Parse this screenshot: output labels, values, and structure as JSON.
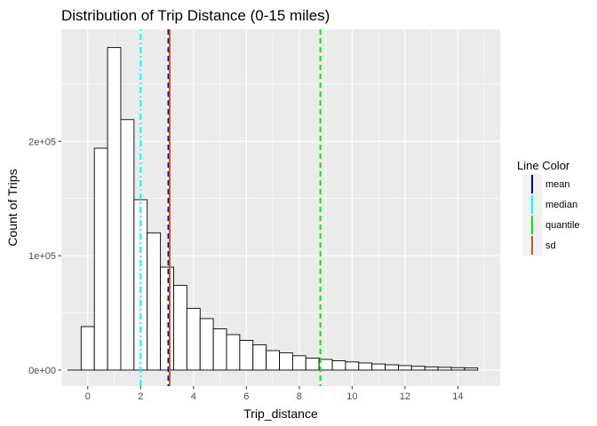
{
  "chart_data": {
    "type": "bar",
    "subtype": "histogram",
    "title": "Distribution of Trip Distance (0-15 miles)",
    "xlabel": "Trip_distance",
    "ylabel": "Count of Trips",
    "xlim": [
      -1.0,
      15.6
    ],
    "ylim": [
      -14000,
      298000
    ],
    "x_ticks": [
      0,
      2,
      4,
      6,
      8,
      10,
      12,
      14
    ],
    "x_tick_labels": [
      "0",
      "2",
      "4",
      "6",
      "8",
      "10",
      "12",
      "14"
    ],
    "y_ticks": [
      0,
      100000,
      200000
    ],
    "y_tick_labels": [
      "0e+00",
      "1e+05",
      "2e+05"
    ],
    "bin_width": 0.5,
    "bins_start": [
      -0.75,
      -0.25,
      0.25,
      0.75,
      1.25,
      1.75,
      2.25,
      2.75,
      3.25,
      3.75,
      4.25,
      4.75,
      5.25,
      5.75,
      6.25,
      6.75,
      7.25,
      7.75,
      8.25,
      8.75,
      9.25,
      9.75,
      10.25,
      10.75,
      11.25,
      11.75,
      12.25,
      12.75,
      13.25,
      13.75,
      14.25
    ],
    "values": [
      0,
      38000,
      194000,
      282000,
      219000,
      149000,
      120000,
      90000,
      74000,
      54000,
      45000,
      36000,
      31000,
      26000,
      22000,
      17000,
      15000,
      12500,
      10500,
      9300,
      8100,
      7100,
      6200,
      5300,
      4600,
      3900,
      3300,
      2800,
      2400,
      2100,
      1800
    ],
    "bar_fill": "#ffffff",
    "bar_outline": "#000000",
    "panel_background": "#ebebeb",
    "grid": true,
    "grid_color": "#ffffff",
    "vlines": [
      {
        "name": "mean",
        "x": 3.05,
        "color": "#0000cd",
        "dash": "dashed"
      },
      {
        "name": "median",
        "x": 2.0,
        "color": "#00ffff",
        "dash": "dotdash"
      },
      {
        "name": "quantile",
        "x": 8.8,
        "color": "#00ee00",
        "dash": "dashed"
      },
      {
        "name": "sd",
        "x": 3.1,
        "color": "#d2541e",
        "dash": "solid"
      }
    ],
    "legend": {
      "title": "Line Color",
      "placement": "right",
      "entries": [
        "mean",
        "median",
        "quantile",
        "sd"
      ]
    }
  }
}
